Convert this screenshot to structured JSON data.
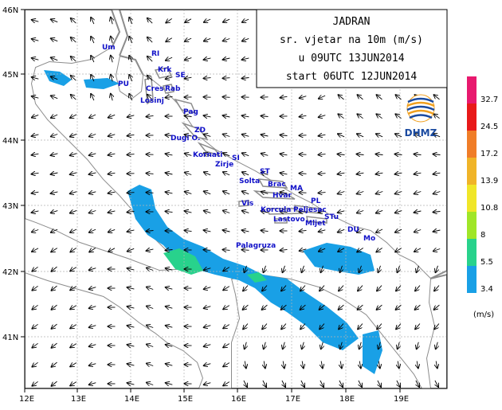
{
  "title": {
    "lines": [
      "JADRAN",
      "sr. vjetar na 10m (m/s)",
      "u 09UTC 13JUN2014",
      "start 06UTC 12JUN2014"
    ]
  },
  "logo": {
    "text": "DHMZ"
  },
  "axes": {
    "lon_labels": [
      "12E",
      "13E",
      "14E",
      "15E",
      "16E",
      "17E",
      "18E",
      "19E"
    ],
    "lat_labels": [
      "46N",
      "45N",
      "44N",
      "43N",
      "42N",
      "41N"
    ]
  },
  "legend": {
    "unit": "(m/s)",
    "levels": [
      "32.7",
      "24.5",
      "17.2",
      "13.9",
      "10.8",
      "8",
      "5.5",
      "3.4"
    ],
    "colors": [
      "#e8196e",
      "#e81919",
      "#f07d28",
      "#f0b428",
      "#f0e628",
      "#a0e628",
      "#28d28c",
      "#19a0e6"
    ]
  },
  "places": [
    {
      "name": "Um",
      "name_id": "um"
    },
    {
      "name": "RI",
      "name_id": "ri"
    },
    {
      "name": "Krk",
      "name_id": "krk"
    },
    {
      "name": "SE",
      "name_id": "se"
    },
    {
      "name": "PU",
      "name_id": "pu"
    },
    {
      "name": "Cres",
      "name_id": "cres"
    },
    {
      "name": "Rab",
      "name_id": "rab"
    },
    {
      "name": "Losinj",
      "name_id": "losinj"
    },
    {
      "name": "Pag",
      "name_id": "pag"
    },
    {
      "name": "ZD",
      "name_id": "zd"
    },
    {
      "name": "Dugi O.",
      "name_id": "dugi"
    },
    {
      "name": "Kornati",
      "name_id": "kornati"
    },
    {
      "name": "SI",
      "name_id": "si"
    },
    {
      "name": "Zirje",
      "name_id": "zirje"
    },
    {
      "name": "ST",
      "name_id": "st"
    },
    {
      "name": "Solta",
      "name_id": "solta"
    },
    {
      "name": "Brac",
      "name_id": "brac"
    },
    {
      "name": "MA",
      "name_id": "ma"
    },
    {
      "name": "Hvar",
      "name_id": "hvar"
    },
    {
      "name": "PL",
      "name_id": "pl"
    },
    {
      "name": "Vis",
      "name_id": "vis"
    },
    {
      "name": "Korcula",
      "name_id": "korcula"
    },
    {
      "name": "Peljesac",
      "name_id": "peljesac"
    },
    {
      "name": "Lastovo",
      "name_id": "lastovo"
    },
    {
      "name": "Mljet",
      "name_id": "mljet"
    },
    {
      "name": "STu",
      "name_id": "stu"
    },
    {
      "name": "DU",
      "name_id": "du"
    },
    {
      "name": "Mo",
      "name_id": "mo"
    },
    {
      "name": "Palagruza",
      "name_id": "palagruza"
    }
  ]
}
